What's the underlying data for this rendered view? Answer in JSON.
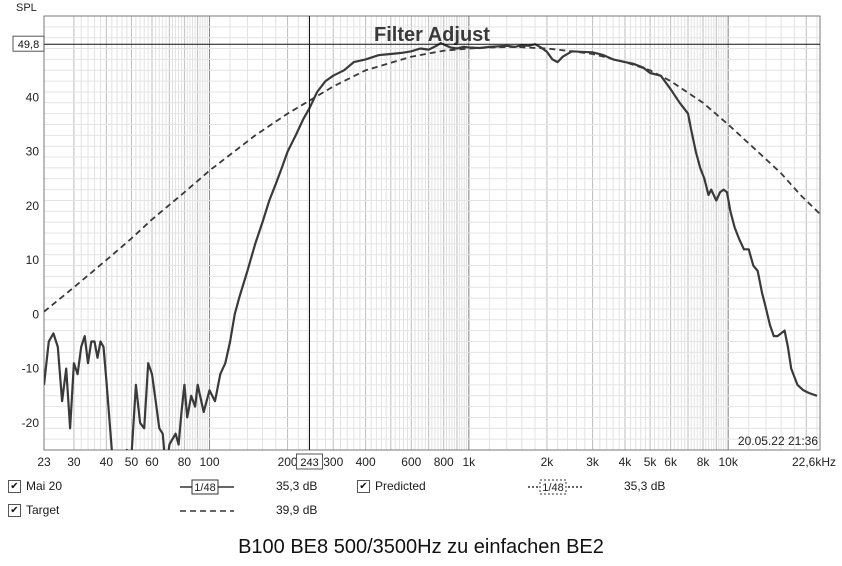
{
  "chart_data": {
    "type": "line",
    "title": "Filter Adjust",
    "ylabel": "SPL",
    "xlabel": "",
    "x_scale": "log",
    "xlim": [
      23,
      22600
    ],
    "ylim": [
      -25,
      55
    ],
    "grid": true,
    "y_ticks": [
      -20,
      -10,
      0,
      10,
      20,
      30,
      40
    ],
    "y_tick_labels": [
      "-20",
      "-10",
      "0",
      "10",
      "20",
      "30",
      "40"
    ],
    "x_ticks": [
      23,
      30,
      40,
      50,
      60,
      80,
      100,
      200,
      300,
      400,
      600,
      800,
      1000,
      2000,
      3000,
      4000,
      5000,
      6000,
      8000,
      10000,
      22600
    ],
    "x_tick_labels": [
      "23",
      "30",
      "40",
      "50",
      "60",
      "80",
      "100",
      "200",
      "300",
      "400",
      "600",
      "800",
      "1k",
      "2k",
      "3k",
      "4k",
      "5k",
      "6k",
      "8k",
      "10k",
      "22,6kHz"
    ],
    "cursor": {
      "x": 243,
      "x_label": "243",
      "y": 49.8,
      "y_label": "49,8"
    },
    "timestamp": "20.05.22 21:36",
    "series": [
      {
        "name": "Mai 20",
        "style": "solid",
        "color": "#3a3a3a",
        "points": [
          [
            23,
            -13
          ],
          [
            24,
            -5
          ],
          [
            25,
            -3.5
          ],
          [
            26,
            -6
          ],
          [
            27,
            -16
          ],
          [
            28,
            -10
          ],
          [
            29,
            -21
          ],
          [
            30,
            -9
          ],
          [
            31,
            -11
          ],
          [
            32,
            -6
          ],
          [
            33,
            -4
          ],
          [
            34,
            -9
          ],
          [
            35,
            -5
          ],
          [
            36,
            -5
          ],
          [
            37,
            -8
          ],
          [
            38,
            -5
          ],
          [
            39,
            -6
          ],
          [
            40,
            -12
          ],
          [
            42,
            -25
          ],
          [
            44,
            -28
          ],
          [
            46,
            -30
          ],
          [
            48,
            -25
          ],
          [
            50,
            -26
          ],
          [
            52,
            -13
          ],
          [
            54,
            -20
          ],
          [
            56,
            -21
          ],
          [
            58,
            -9
          ],
          [
            60,
            -11
          ],
          [
            62,
            -16
          ],
          [
            64,
            -21
          ],
          [
            66,
            -22
          ],
          [
            68,
            -29
          ],
          [
            70,
            -24
          ],
          [
            72,
            -23
          ],
          [
            74,
            -22
          ],
          [
            76,
            -24
          ],
          [
            78,
            -18
          ],
          [
            80,
            -13
          ],
          [
            82,
            -19
          ],
          [
            85,
            -15
          ],
          [
            88,
            -17
          ],
          [
            90,
            -13
          ],
          [
            95,
            -18
          ],
          [
            100,
            -14
          ],
          [
            105,
            -16
          ],
          [
            110,
            -11
          ],
          [
            115,
            -9
          ],
          [
            120,
            -5
          ],
          [
            125,
            0
          ],
          [
            130,
            3
          ],
          [
            140,
            8
          ],
          [
            150,
            13
          ],
          [
            160,
            17
          ],
          [
            170,
            21
          ],
          [
            180,
            24
          ],
          [
            190,
            27
          ],
          [
            200,
            30
          ],
          [
            215,
            33
          ],
          [
            230,
            36
          ],
          [
            243,
            38
          ],
          [
            260,
            41
          ],
          [
            280,
            43
          ],
          [
            300,
            44
          ],
          [
            330,
            45
          ],
          [
            360,
            46.5
          ],
          [
            400,
            47
          ],
          [
            450,
            47.8
          ],
          [
            500,
            48
          ],
          [
            550,
            48.2
          ],
          [
            600,
            48.5
          ],
          [
            650,
            49
          ],
          [
            700,
            48.8
          ],
          [
            750,
            49.5
          ],
          [
            780,
            50
          ],
          [
            820,
            49.5
          ],
          [
            850,
            49.2
          ],
          [
            900,
            49
          ],
          [
            950,
            49.3
          ],
          [
            1000,
            49.2
          ],
          [
            1100,
            49.1
          ],
          [
            1200,
            49.3
          ],
          [
            1300,
            49.4
          ],
          [
            1400,
            49.5
          ],
          [
            1500,
            49.3
          ],
          [
            1600,
            49.6
          ],
          [
            1700,
            49.5
          ],
          [
            1800,
            49.8
          ],
          [
            1900,
            49.2
          ],
          [
            2000,
            48.4
          ],
          [
            2100,
            47
          ],
          [
            2200,
            46.5
          ],
          [
            2300,
            47.5
          ],
          [
            2500,
            48.5
          ],
          [
            2700,
            48.4
          ],
          [
            3000,
            48.3
          ],
          [
            3300,
            47.8
          ],
          [
            3600,
            47
          ],
          [
            4000,
            46.5
          ],
          [
            4300,
            46.2
          ],
          [
            4700,
            45.5
          ],
          [
            5000,
            44.5
          ],
          [
            5500,
            44
          ],
          [
            6000,
            41.5
          ],
          [
            6500,
            39
          ],
          [
            7000,
            37
          ],
          [
            7200,
            34
          ],
          [
            7500,
            30
          ],
          [
            7800,
            27
          ],
          [
            8100,
            25
          ],
          [
            8400,
            22
          ],
          [
            8600,
            23
          ],
          [
            9000,
            21
          ],
          [
            9300,
            22.5
          ],
          [
            9600,
            23
          ],
          [
            9900,
            22.5
          ],
          [
            10200,
            19
          ],
          [
            10600,
            16
          ],
          [
            11000,
            14
          ],
          [
            11500,
            12
          ],
          [
            12000,
            12
          ],
          [
            12500,
            9
          ],
          [
            13000,
            8
          ],
          [
            13500,
            4
          ],
          [
            14000,
            1
          ],
          [
            14500,
            -2
          ],
          [
            15000,
            -4
          ],
          [
            15500,
            -4
          ],
          [
            16500,
            -3
          ],
          [
            17000,
            -6
          ],
          [
            17500,
            -10
          ],
          [
            18500,
            -13
          ],
          [
            19500,
            -14
          ],
          [
            20500,
            -14.5
          ],
          [
            22000,
            -15
          ]
        ]
      },
      {
        "name": "Target",
        "style": "dashed",
        "color": "#3a3a3a",
        "points": [
          [
            23,
            0.5
          ],
          [
            30,
            5
          ],
          [
            40,
            10
          ],
          [
            50,
            14
          ],
          [
            60,
            17.5
          ],
          [
            80,
            22.5
          ],
          [
            100,
            26.5
          ],
          [
            150,
            33
          ],
          [
            200,
            37
          ],
          [
            300,
            42
          ],
          [
            400,
            45
          ],
          [
            600,
            47.5
          ],
          [
            800,
            48.6
          ],
          [
            1000,
            49
          ],
          [
            1200,
            49.2
          ],
          [
            1500,
            49.3
          ],
          [
            2000,
            49
          ],
          [
            2500,
            48.5
          ],
          [
            3000,
            48
          ],
          [
            4000,
            46.5
          ],
          [
            5000,
            45
          ],
          [
            6000,
            43
          ],
          [
            8000,
            39
          ],
          [
            10000,
            35
          ],
          [
            13000,
            30
          ],
          [
            16000,
            26
          ],
          [
            19000,
            22
          ],
          [
            22600,
            18.5
          ]
        ]
      }
    ],
    "legend": [
      {
        "name": "Mai 20",
        "checked": true,
        "smoothing": "1/48",
        "value": "35,3 dB"
      },
      {
        "name": "Predicted",
        "checked": true,
        "smoothing": "1/48",
        "value": "35,3 dB"
      },
      {
        "name": "Target",
        "checked": true,
        "smoothing": "",
        "value": "39,9 dB"
      }
    ]
  },
  "caption": "B100 BE8 500/3500Hz zu einfachen BE2"
}
